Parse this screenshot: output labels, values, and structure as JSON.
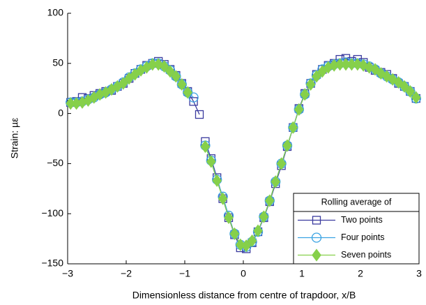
{
  "chart_data": {
    "type": "line",
    "xlabel": "Dimensionless distance from centre of trapdoor, x/B",
    "ylabel": "Strain: µε",
    "legend_title": "Rolling average of",
    "legend": "lower right",
    "x": [
      -2.95,
      -2.85,
      -2.75,
      -2.65,
      -2.55,
      -2.45,
      -2.35,
      -2.25,
      -2.15,
      -2.05,
      -1.95,
      -1.85,
      -1.75,
      -1.65,
      -1.55,
      -1.45,
      -1.35,
      -1.25,
      -1.15,
      -1.05,
      -0.95,
      -0.85,
      -0.75,
      -0.7,
      -0.65,
      -0.55,
      -0.45,
      -0.35,
      -0.25,
      -0.15,
      -0.05,
      0.05,
      0.15,
      0.25,
      0.35,
      0.45,
      0.55,
      0.65,
      0.75,
      0.85,
      0.95,
      1.05,
      1.15,
      1.25,
      1.35,
      1.45,
      1.55,
      1.65,
      1.75,
      1.85,
      1.95,
      2.05,
      2.15,
      2.25,
      2.35,
      2.45,
      2.55,
      2.65,
      2.75,
      2.85,
      2.95
    ],
    "series": [
      {
        "name": "Two points",
        "color": "#3a3a9e",
        "marker": "square",
        "values": [
          11,
          12,
          16,
          15,
          18,
          20,
          22,
          23,
          27,
          30,
          35,
          40,
          44,
          48,
          50,
          52,
          49,
          44,
          38,
          30,
          22,
          12,
          -1,
          null,
          -28,
          -45,
          -64,
          -85,
          -104,
          -121,
          -134,
          -135,
          -129,
          -118,
          -104,
          -88,
          -70,
          -52,
          -33,
          -14,
          5,
          20,
          30,
          39,
          44,
          48,
          50,
          54,
          55,
          52,
          54,
          51,
          46,
          43,
          41,
          39,
          35,
          30,
          27,
          22,
          15
        ]
      },
      {
        "name": "Four points",
        "color": "#3aa3e3",
        "marker": "circle",
        "values": [
          11,
          11,
          12,
          14,
          16,
          19,
          21,
          24,
          27,
          31,
          36,
          40,
          44,
          47,
          50,
          50,
          47,
          43,
          37,
          29,
          21,
          16,
          null,
          null,
          -32,
          -47,
          -66,
          -83,
          -102,
          -120,
          -131,
          -133,
          -128,
          -118,
          -103,
          -87,
          -68,
          -50,
          -32,
          -14,
          4,
          19,
          30,
          38,
          44,
          47,
          49,
          50,
          51,
          50,
          50,
          49,
          47,
          44,
          40,
          37,
          34,
          31,
          27,
          22,
          15
        ]
      },
      {
        "name": "Seven points",
        "color": "#86d04a",
        "marker": "diamond",
        "values": [
          10,
          10,
          11,
          13,
          16,
          19,
          21,
          24,
          27,
          30,
          35,
          39,
          43,
          46,
          49,
          49,
          47,
          42,
          37,
          29,
          21,
          null,
          null,
          null,
          -33,
          -48,
          -67,
          -85,
          -104,
          -120,
          -131,
          -132,
          -127,
          -117,
          -103,
          -87,
          -68,
          -50,
          -32,
          -14,
          4,
          19,
          29,
          37,
          42,
          46,
          48,
          49,
          49,
          49,
          49,
          48,
          46,
          44,
          40,
          37,
          34,
          31,
          27,
          22,
          16
        ]
      }
    ],
    "xlim": [
      -3,
      3
    ],
    "xticks": [
      {
        "value": -3,
        "label": "−3"
      },
      {
        "value": -2,
        "label": "−2"
      },
      {
        "value": -1,
        "label": "−1"
      },
      0,
      1,
      2,
      3
    ],
    "ylim": [
      -150,
      100
    ],
    "yticks": [
      {
        "value": -150,
        "label": "−150"
      },
      {
        "value": -100,
        "label": "−100"
      },
      {
        "value": -50,
        "label": "−50"
      },
      0,
      50,
      100
    ]
  }
}
